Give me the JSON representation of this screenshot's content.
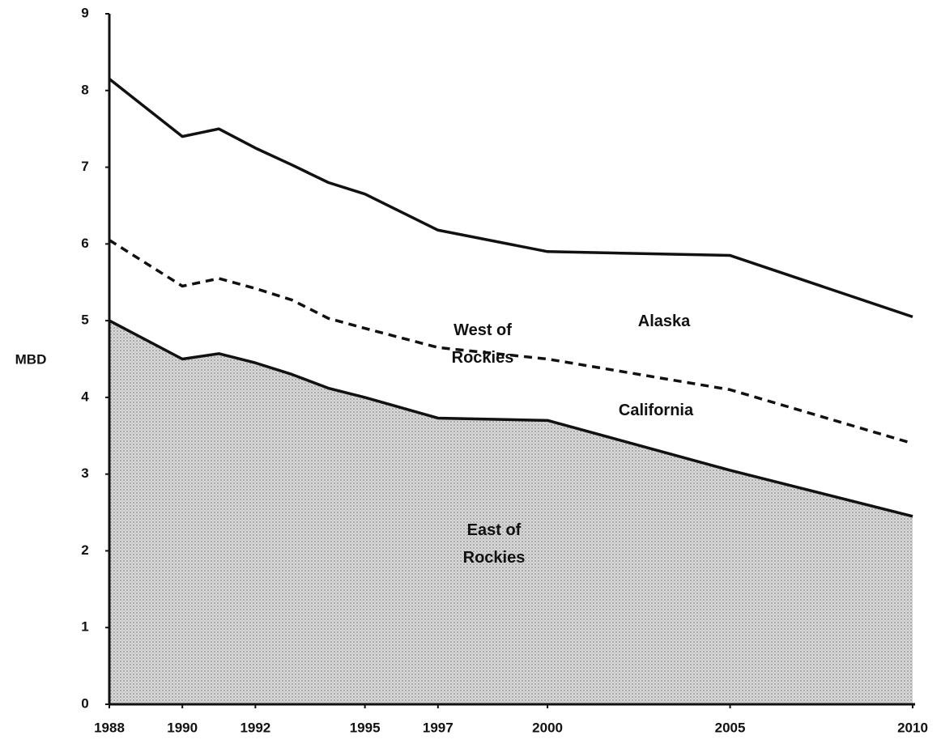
{
  "chart_data": {
    "type": "area",
    "stacked": true,
    "ylabel": "MBD",
    "x": [
      1988,
      1990,
      1991,
      1992,
      1993,
      1994,
      1995,
      1997,
      2000,
      2005,
      2010
    ],
    "xlim": [
      1988,
      2010
    ],
    "xticks": [
      1988,
      1990,
      1992,
      1995,
      1997,
      2000,
      2005,
      2010
    ],
    "ylim": [
      0,
      9
    ],
    "yticks": [
      0,
      1,
      2,
      3,
      4,
      5,
      6,
      7,
      8,
      9
    ],
    "series": [
      {
        "name": "East of Rockies",
        "color": "#c4c4c4",
        "line_style": "solid",
        "values": [
          5.0,
          4.5,
          4.57,
          4.45,
          4.3,
          4.12,
          4.0,
          3.73,
          3.7,
          3.05,
          2.45
        ]
      },
      {
        "name": "West of Rockies",
        "color": "#ffffff",
        "line_style": "dashed",
        "values": [
          1.05,
          0.95,
          0.98,
          0.97,
          0.97,
          0.91,
          0.9,
          0.92,
          0.8,
          1.05,
          0.95
        ]
      },
      {
        "name": "Alaska",
        "color": "#ffffff",
        "line_style": "solid",
        "values": [
          2.1,
          1.95,
          1.95,
          1.83,
          1.76,
          1.77,
          1.75,
          1.53,
          1.4,
          1.75,
          1.65
        ]
      }
    ],
    "annotations": [
      {
        "text": "California"
      }
    ]
  }
}
